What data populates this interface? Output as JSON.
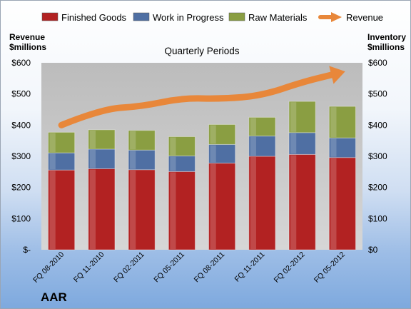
{
  "chart_data": {
    "type": "bar",
    "stacked": true,
    "subtitle": "Quarterly Periods",
    "company": "AAR",
    "left_axis_label": [
      "Revenue",
      "$millions"
    ],
    "right_axis_label": [
      "Inventory",
      "$millions"
    ],
    "categories": [
      "FQ 08-2010",
      "FQ 11-2010",
      "FQ 02-2011",
      "FQ 05-2011",
      "FQ 08-2011",
      "FQ 11-2011",
      "FQ 02-2012",
      "FQ 05-2012"
    ],
    "series": [
      {
        "name": "Finished Goods",
        "color": "#b22222",
        "values": [
          256,
          260,
          257,
          251,
          278,
          300,
          306,
          296
        ]
      },
      {
        "name": "Work in Progress",
        "color": "#4f6fa3",
        "values": [
          55,
          63,
          63,
          50,
          60,
          65,
          70,
          63
        ]
      },
      {
        "name": "Raw Materials",
        "color": "#8a9e42",
        "values": [
          66,
          62,
          63,
          62,
          64,
          60,
          100,
          101
        ]
      }
    ],
    "line_series": {
      "name": "Revenue",
      "color": "#e8873a",
      "values": [
        400,
        452,
        460,
        487,
        484,
        495,
        538,
        570
      ]
    },
    "left_ylim": [
      0,
      600
    ],
    "right_ylim": [
      0,
      600
    ],
    "left_ticks": [
      "$-",
      "$100",
      "$200",
      "$300",
      "$400",
      "$500",
      "$600"
    ],
    "right_ticks": [
      "$0",
      "$100",
      "$200",
      "$300",
      "$400",
      "$500",
      "$600"
    ],
    "legend": [
      "Finished Goods",
      "Work in Progress",
      "Raw Materials",
      "Revenue"
    ],
    "legend_position": "top",
    "grid": false,
    "plot_background": "#c4c4c4"
  }
}
